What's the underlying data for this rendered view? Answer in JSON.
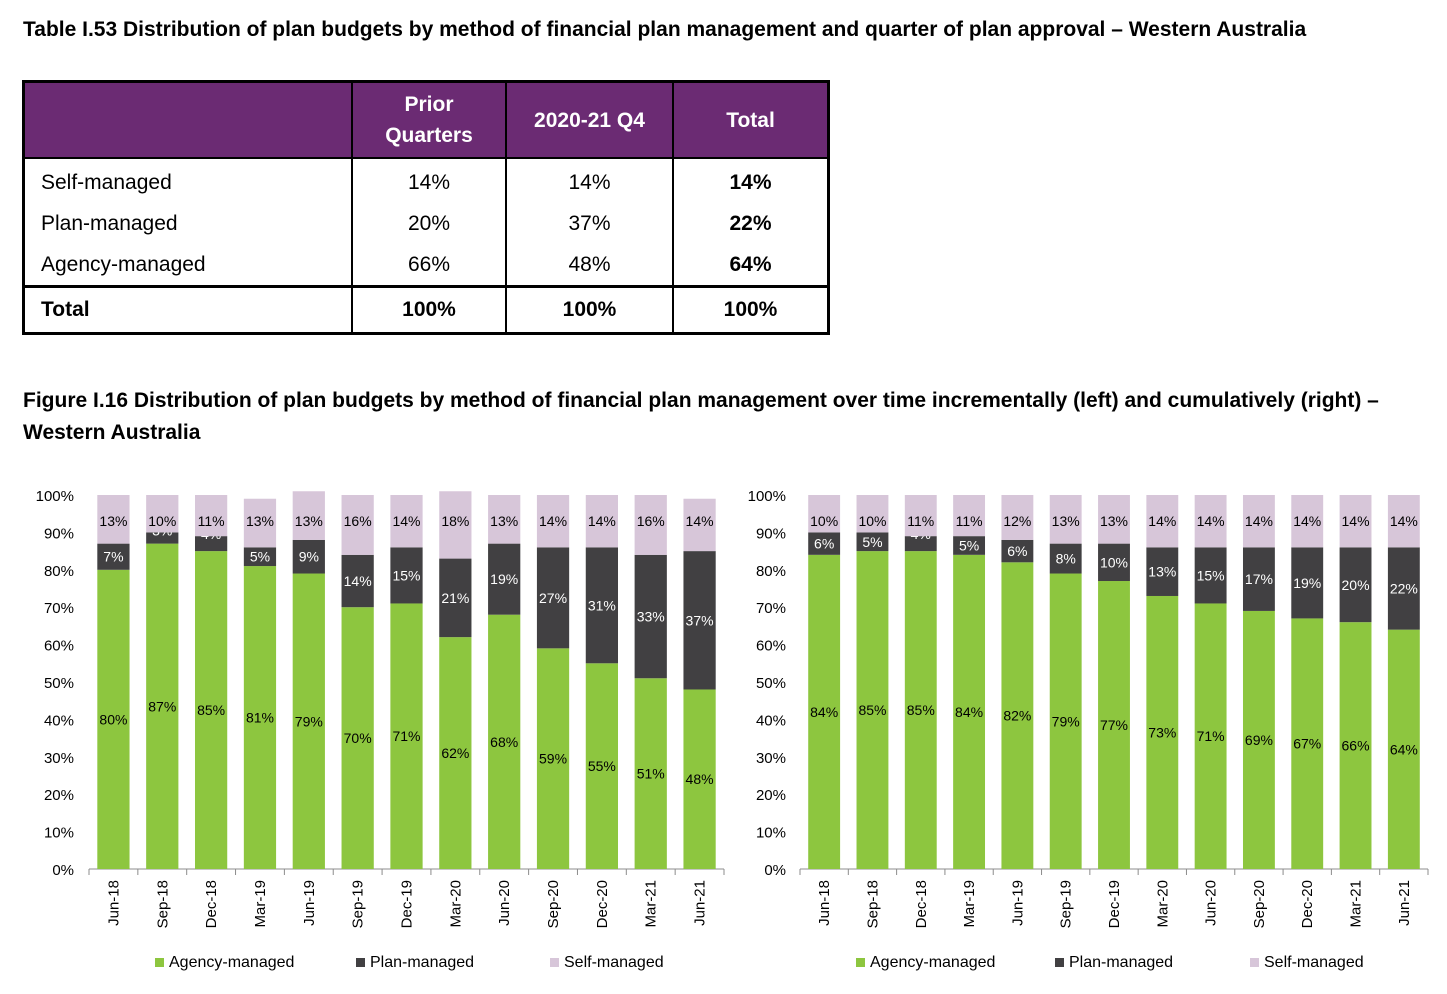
{
  "table": {
    "title": "Table I.53 Distribution of plan budgets by method of financial plan management and quarter of plan approval – Western Australia",
    "columns": [
      "",
      "Prior Quarters",
      "2020-21 Q4",
      "Total"
    ],
    "rows": [
      {
        "label": "Self-managed",
        "prior": "14%",
        "q4": "14%",
        "total": "14%"
      },
      {
        "label": "Plan-managed",
        "prior": "20%",
        "q4": "37%",
        "total": "22%"
      },
      {
        "label": "Agency-managed",
        "prior": "66%",
        "q4": "48%",
        "total": "64%"
      },
      {
        "label": "Total",
        "prior": "100%",
        "q4": "100%",
        "total": "100%"
      }
    ]
  },
  "figure": {
    "title": "Figure I.16 Distribution of plan budgets by method of financial plan management over time incrementally (left) and cumulatively (right) – Western Australia"
  },
  "colors": {
    "agency": "#8dc63f",
    "plan": "#414042",
    "self": "#d7c6d9",
    "header": "#6b2b73"
  },
  "chart_data": [
    {
      "type": "bar",
      "stacked": true,
      "categories": [
        "Jun-18",
        "Sep-18",
        "Dec-18",
        "Mar-19",
        "Jun-19",
        "Sep-19",
        "Dec-19",
        "Mar-20",
        "Jun-20",
        "Sep-20",
        "Dec-20",
        "Mar-21",
        "Jun-21"
      ],
      "ylim": [
        0,
        100
      ],
      "yticks": [
        "0%",
        "10%",
        "20%",
        "30%",
        "40%",
        "50%",
        "60%",
        "70%",
        "80%",
        "90%",
        "100%"
      ],
      "legend_position": "bottom",
      "series": [
        {
          "name": "Agency-managed",
          "values": [
            80,
            87,
            85,
            81,
            79,
            70,
            71,
            62,
            68,
            59,
            55,
            51,
            48
          ]
        },
        {
          "name": "Plan-managed",
          "values": [
            7,
            3,
            4,
            5,
            9,
            14,
            15,
            21,
            19,
            27,
            31,
            33,
            37
          ]
        },
        {
          "name": "Self-managed",
          "values": [
            13,
            10,
            11,
            13,
            13,
            16,
            14,
            18,
            13,
            14,
            14,
            16,
            14
          ]
        }
      ]
    },
    {
      "type": "bar",
      "stacked": true,
      "categories": [
        "Jun-18",
        "Sep-18",
        "Dec-18",
        "Mar-19",
        "Jun-19",
        "Sep-19",
        "Dec-19",
        "Mar-20",
        "Jun-20",
        "Sep-20",
        "Dec-20",
        "Mar-21",
        "Jun-21"
      ],
      "ylim": [
        0,
        100
      ],
      "yticks": [
        "0%",
        "10%",
        "20%",
        "30%",
        "40%",
        "50%",
        "60%",
        "70%",
        "80%",
        "90%",
        "100%"
      ],
      "legend_position": "bottom",
      "series": [
        {
          "name": "Agency-managed",
          "values": [
            84,
            85,
            85,
            84,
            82,
            79,
            77,
            73,
            71,
            69,
            67,
            66,
            64
          ]
        },
        {
          "name": "Plan-managed",
          "values": [
            6,
            5,
            4,
            5,
            6,
            8,
            10,
            13,
            15,
            17,
            19,
            20,
            22
          ]
        },
        {
          "name": "Self-managed",
          "values": [
            10,
            10,
            11,
            11,
            12,
            13,
            13,
            14,
            14,
            14,
            14,
            14,
            14
          ]
        }
      ]
    }
  ]
}
